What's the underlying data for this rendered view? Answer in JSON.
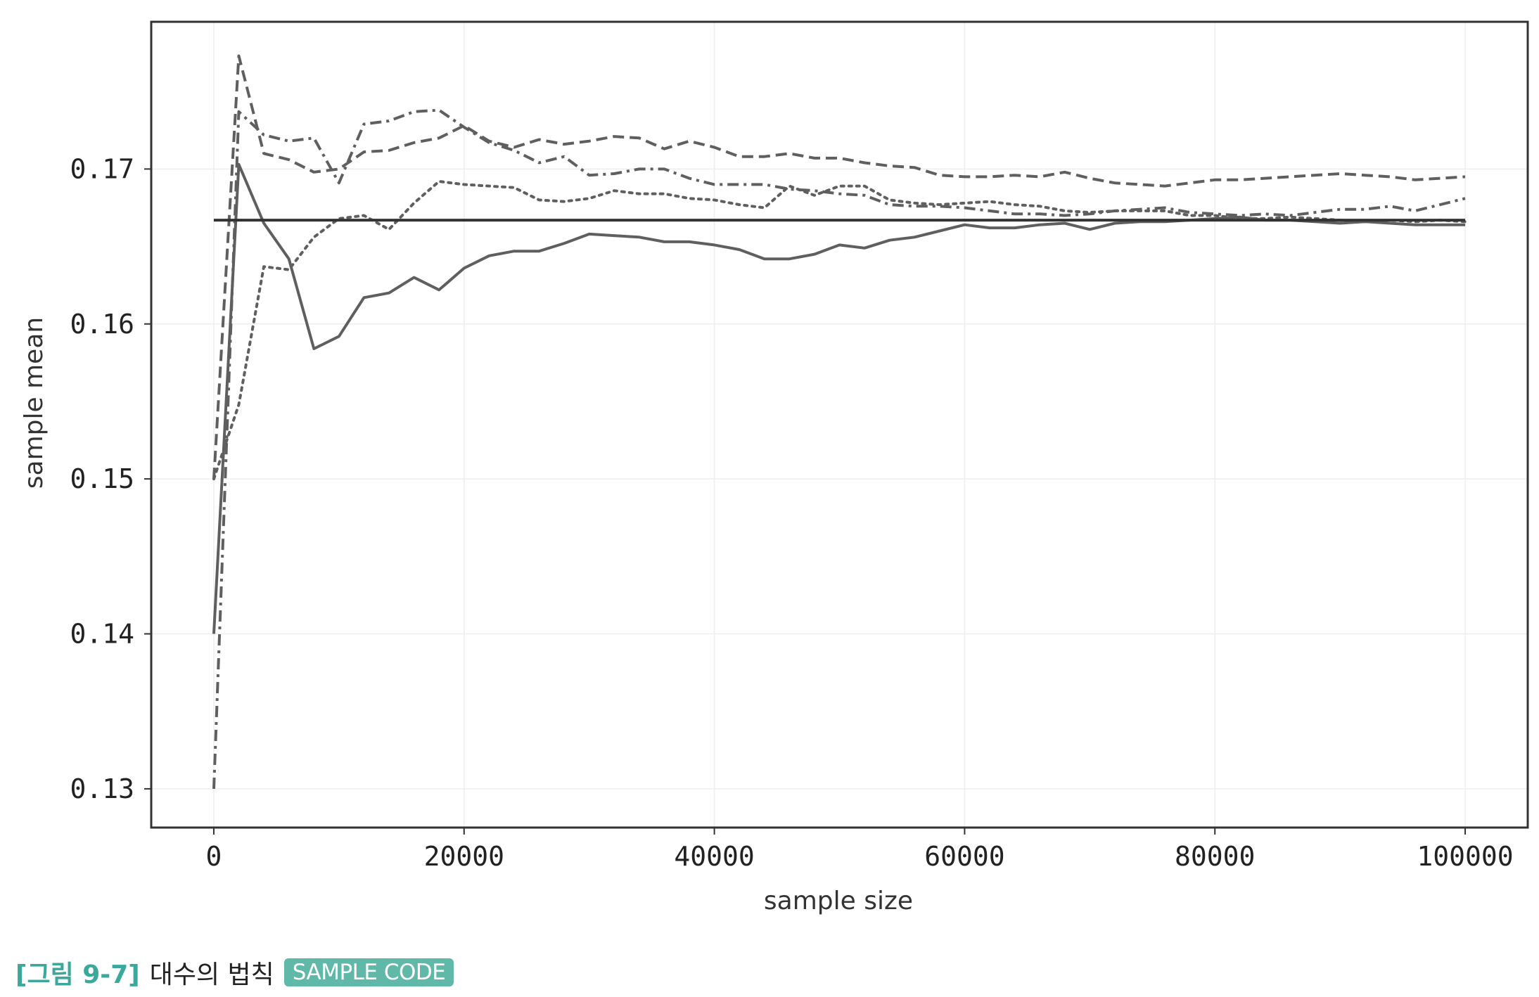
{
  "caption": {
    "number": "[그림 9-7]",
    "text": "대수의 법칙",
    "badge": "SAMPLE CODE"
  },
  "colors": {
    "series": "#5f5f5f",
    "reference": "#333333",
    "grid": "#eeeeee",
    "frame": "#333333",
    "caption_accent": "#3aa89a",
    "badge_bg": "#5fb8a8"
  },
  "chart_data": {
    "type": "line",
    "title": "",
    "xlabel": "sample size",
    "ylabel": "sample mean",
    "xlim": [
      -5000,
      105000
    ],
    "ylim": [
      0.1275,
      0.1795
    ],
    "xticks": [
      0,
      20000,
      40000,
      60000,
      80000,
      100000
    ],
    "xtick_labels": [
      "0",
      "20000",
      "40000",
      "60000",
      "80000",
      "100000"
    ],
    "yticks": [
      0.13,
      0.14,
      0.15,
      0.16,
      0.17
    ],
    "ytick_labels": [
      "0.13",
      "0.14",
      "0.15",
      "0.16",
      "0.17"
    ],
    "grid": true,
    "legend": "none",
    "reference_line": {
      "y": 0.1667,
      "x": [
        0,
        100000
      ],
      "style": "solid"
    },
    "x": [
      0,
      2000,
      4000,
      6000,
      8000,
      10000,
      12000,
      14000,
      16000,
      18000,
      20000,
      22000,
      24000,
      26000,
      28000,
      30000,
      32000,
      34000,
      36000,
      38000,
      40000,
      42000,
      44000,
      46000,
      48000,
      50000,
      52000,
      54000,
      56000,
      58000,
      60000,
      62000,
      64000,
      66000,
      68000,
      70000,
      72000,
      74000,
      76000,
      78000,
      80000,
      82000,
      84000,
      86000,
      88000,
      90000,
      92000,
      94000,
      96000,
      98000,
      100000
    ],
    "series": [
      {
        "style": "solid",
        "values": [
          0.14,
          0.1703,
          0.1665,
          0.1642,
          0.1584,
          0.1592,
          0.1617,
          0.162,
          0.163,
          0.1622,
          0.1636,
          0.1644,
          0.1647,
          0.1647,
          0.1652,
          0.1658,
          0.1657,
          0.1656,
          0.1653,
          0.1653,
          0.1651,
          0.1648,
          0.1642,
          0.1642,
          0.1645,
          0.1651,
          0.1649,
          0.1654,
          0.1656,
          0.166,
          0.1664,
          0.1662,
          0.1662,
          0.1664,
          0.1665,
          0.1661,
          0.1665,
          0.1666,
          0.1666,
          0.1667,
          0.1668,
          0.1669,
          0.1667,
          0.1667,
          0.1666,
          0.1665,
          0.1666,
          0.1665,
          0.1664,
          0.1664,
          0.1664
        ]
      },
      {
        "style": "dashed",
        "values": [
          0.15,
          0.1773,
          0.171,
          0.1706,
          0.1698,
          0.17,
          0.1711,
          0.1712,
          0.1717,
          0.172,
          0.1728,
          0.1718,
          0.1714,
          0.1719,
          0.1716,
          0.1718,
          0.1721,
          0.172,
          0.1713,
          0.1718,
          0.1714,
          0.1708,
          0.1708,
          0.171,
          0.1707,
          0.1707,
          0.1704,
          0.1702,
          0.1701,
          0.1696,
          0.1695,
          0.1695,
          0.1696,
          0.1695,
          0.1698,
          0.1694,
          0.1691,
          0.169,
          0.1689,
          0.1691,
          0.1693,
          0.1693,
          0.1694,
          0.1695,
          0.1696,
          0.1697,
          0.1696,
          0.1695,
          0.1693,
          0.1694,
          0.1695
        ]
      },
      {
        "style": "dotted",
        "values": [
          0.15,
          0.1548,
          0.1637,
          0.1635,
          0.1656,
          0.1668,
          0.167,
          0.1661,
          0.1678,
          0.1692,
          0.169,
          0.1689,
          0.1688,
          0.168,
          0.1679,
          0.1681,
          0.1686,
          0.1684,
          0.1684,
          0.1681,
          0.168,
          0.1677,
          0.1675,
          0.1689,
          0.1683,
          0.1689,
          0.1689,
          0.168,
          0.1678,
          0.1677,
          0.1678,
          0.1679,
          0.1677,
          0.1676,
          0.1673,
          0.1672,
          0.1673,
          0.1673,
          0.1673,
          0.167,
          0.167,
          0.1668,
          0.1668,
          0.1669,
          0.1668,
          0.1667,
          0.1666,
          0.1667,
          0.1666,
          0.1667,
          0.1666
        ]
      },
      {
        "style": "dashdot",
        "values": [
          0.13,
          0.1737,
          0.1722,
          0.1718,
          0.172,
          0.1691,
          0.1729,
          0.1731,
          0.1737,
          0.1738,
          0.1727,
          0.1717,
          0.1712,
          0.1704,
          0.1708,
          0.1696,
          0.1697,
          0.17,
          0.17,
          0.1694,
          0.169,
          0.169,
          0.169,
          0.1687,
          0.1686,
          0.1684,
          0.1683,
          0.1677,
          0.1676,
          0.1676,
          0.1675,
          0.1673,
          0.1671,
          0.1671,
          0.167,
          0.1671,
          0.1673,
          0.1674,
          0.1675,
          0.1672,
          0.1671,
          0.167,
          0.1671,
          0.167,
          0.1672,
          0.1674,
          0.1674,
          0.1676,
          0.1673,
          0.1677,
          0.1681
        ]
      }
    ]
  }
}
